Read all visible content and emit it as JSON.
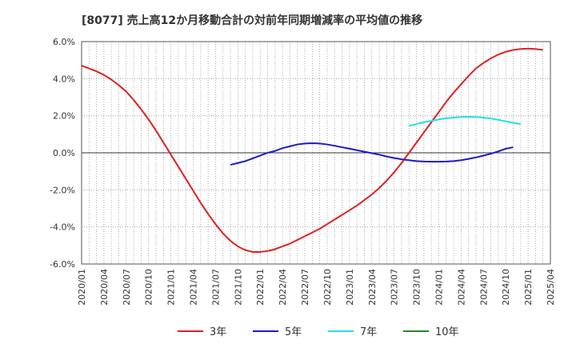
{
  "chart_data": {
    "type": "line",
    "title": "[8077]  売上高12か月移動合計の対前年同期増減率の平均値の推移",
    "xlabel": "",
    "ylabel": "",
    "ylim": [
      -6.0,
      6.0
    ],
    "y_ticks": [
      6.0,
      4.0,
      2.0,
      0.0,
      -2.0,
      -4.0,
      -6.0
    ],
    "y_tick_labels": [
      "6.0%",
      "4.0%",
      "2.0%",
      "0.0%",
      "-2.0%",
      "-4.0%",
      "-6.0%"
    ],
    "x_tick_labels": [
      "2020/01",
      "2020/04",
      "2020/07",
      "2020/10",
      "2021/01",
      "2021/04",
      "2021/07",
      "2021/10",
      "2022/01",
      "2022/04",
      "2022/07",
      "2022/10",
      "2023/01",
      "2023/04",
      "2023/07",
      "2023/10",
      "2024/01",
      "2024/04",
      "2024/07",
      "2024/10",
      "2025/01",
      "2025/04"
    ],
    "x_start": "2020/01",
    "months_total": 63,
    "grid": true,
    "legend_position": "bottom",
    "series": [
      {
        "name": "3年",
        "color": "#e02020",
        "start": "2020/01",
        "values": [
          4.7,
          4.55,
          4.4,
          4.2,
          3.95,
          3.65,
          3.3,
          2.85,
          2.35,
          1.8,
          1.2,
          0.55,
          -0.1,
          -0.75,
          -1.4,
          -2.05,
          -2.7,
          -3.3,
          -3.85,
          -4.35,
          -4.75,
          -5.05,
          -5.25,
          -5.35,
          -5.35,
          -5.3,
          -5.2,
          -5.05,
          -4.9,
          -4.7,
          -4.5,
          -4.3,
          -4.1,
          -3.85,
          -3.6,
          -3.35,
          -3.1,
          -2.85,
          -2.55,
          -2.25,
          -1.9,
          -1.5,
          -1.05,
          -0.55,
          0.0,
          0.55,
          1.1,
          1.65,
          2.2,
          2.75,
          3.25,
          3.7,
          4.15,
          4.55,
          4.85,
          5.1,
          5.3,
          5.45,
          5.55,
          5.6,
          5.62,
          5.6,
          5.55
        ]
      },
      {
        "name": "5年",
        "color": "#1a1acc",
        "start": "2021/09",
        "values": [
          -0.65,
          -0.55,
          -0.45,
          -0.3,
          -0.15,
          0.0,
          0.1,
          0.25,
          0.35,
          0.45,
          0.5,
          0.52,
          0.5,
          0.45,
          0.38,
          0.3,
          0.22,
          0.14,
          0.06,
          -0.02,
          -0.1,
          -0.2,
          -0.28,
          -0.35,
          -0.4,
          -0.45,
          -0.47,
          -0.48,
          -0.48,
          -0.47,
          -0.45,
          -0.4,
          -0.33,
          -0.25,
          -0.15,
          -0.05,
          0.08,
          0.22,
          0.3
        ]
      },
      {
        "name": "7年",
        "color": "#22e0e8",
        "start": "2023/09",
        "values": [
          1.45,
          1.55,
          1.65,
          1.72,
          1.8,
          1.86,
          1.9,
          1.93,
          1.94,
          1.93,
          1.9,
          1.85,
          1.78,
          1.7,
          1.62,
          1.55
        ]
      },
      {
        "name": "10年",
        "color": "#1f8a1f",
        "start": "2025/01",
        "values": []
      }
    ]
  }
}
